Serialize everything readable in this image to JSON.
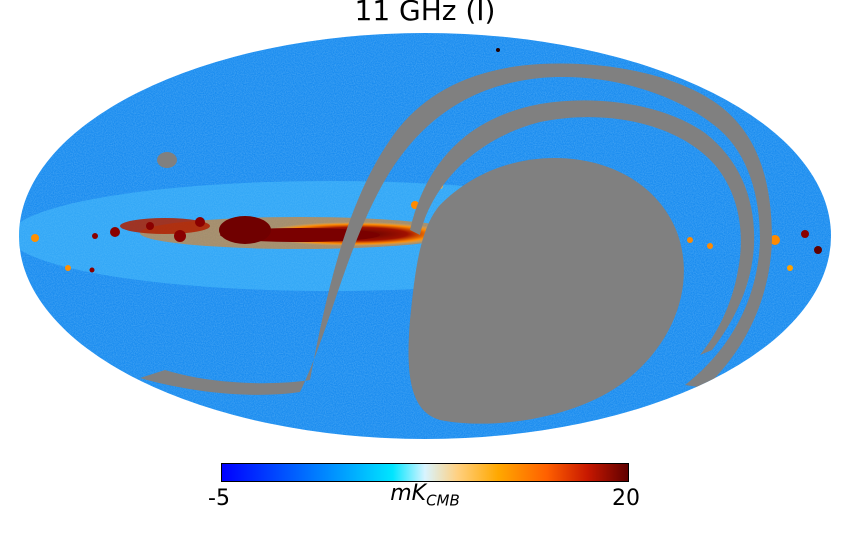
{
  "title": "11 GHz (I)",
  "colorbar": {
    "min_label": "-5",
    "max_label": "20",
    "unit_main": "mK",
    "unit_sub": "CMB",
    "colormap_stops": [
      "#0000ff",
      "#00a0ff",
      "#00e5ff",
      "#d8f4ff",
      "#ffd080",
      "#ffa800",
      "#ff6000",
      "#c81800",
      "#600000"
    ]
  },
  "colors": {
    "sky_background": "#1a8cf0",
    "mask": "#808080",
    "galactic_plane_hot": "#6a0000",
    "galactic_plane_warm": "#ff6a00"
  }
}
